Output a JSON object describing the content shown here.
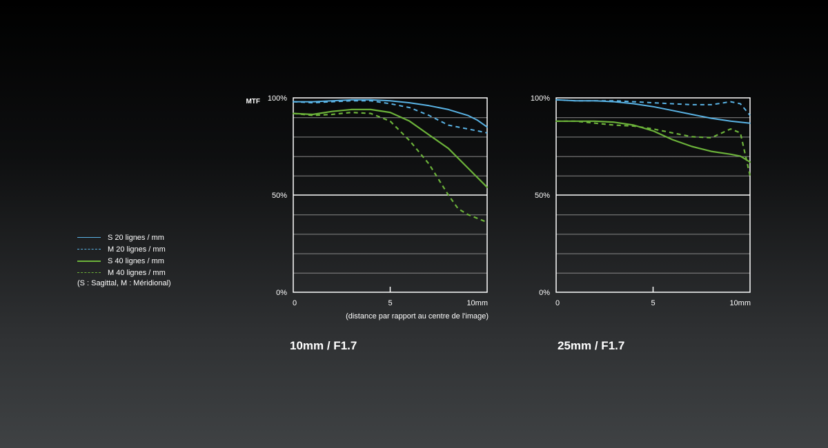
{
  "colors": {
    "sagittal_20": "#5ab4e6",
    "meridional_20": "#5ab4e6",
    "sagittal_40": "#6cb33a",
    "meridional_40": "#6cb33a",
    "axis": "#ffffff",
    "grid": "#8a8a8a"
  },
  "legend": {
    "items": [
      {
        "label": "S 20 lignes / mm",
        "color": "#5ab4e6",
        "style": "solid"
      },
      {
        "label": "M 20 lignes / mm",
        "color": "#5ab4e6",
        "style": "dashed"
      },
      {
        "label": "S 40 lignes / mm",
        "color": "#6cb33a",
        "style": "solid"
      },
      {
        "label": "M 40 lignes / mm",
        "color": "#6cb33a",
        "style": "dashed"
      }
    ],
    "note": "(S : Sagittal, M : Méridional)"
  },
  "chart_data": [
    {
      "type": "line",
      "title": "10mm / F1.7",
      "ylabel": "MTF",
      "xlabel": "(distance par rapport au centre de l'image)",
      "xlim": [
        0,
        10
      ],
      "ylim": [
        0,
        100
      ],
      "x_ticks": [
        "0",
        "5",
        "10mm"
      ],
      "y_ticks": [
        "0%",
        "50%",
        "100%"
      ],
      "grid": true,
      "series": [
        {
          "name": "S 20 lignes / mm",
          "style": "solid",
          "color": "#5ab4e6",
          "x": [
            0,
            1,
            2,
            3,
            4,
            5,
            6,
            7,
            8,
            9,
            9.5,
            10
          ],
          "y": [
            98,
            98,
            98.5,
            99,
            99,
            98.5,
            97.5,
            96,
            94,
            91,
            88.5,
            85
          ]
        },
        {
          "name": "M 20 lignes / mm",
          "style": "dashed",
          "color": "#5ab4e6",
          "x": [
            0,
            1,
            2,
            3,
            4,
            5,
            6,
            7,
            8,
            9,
            9.5,
            10
          ],
          "y": [
            98,
            97.5,
            98,
            98.5,
            98.5,
            97,
            95,
            91,
            86,
            84,
            83,
            82
          ]
        },
        {
          "name": "S 40 lignes / mm",
          "style": "solid",
          "color": "#6cb33a",
          "x": [
            0,
            1,
            2,
            3,
            3.5,
            4,
            5,
            6,
            7,
            8,
            9,
            10
          ],
          "y": [
            92,
            91.5,
            93,
            94,
            94,
            94,
            92.5,
            88,
            81,
            74,
            64,
            54
          ]
        },
        {
          "name": "M 40 lignes / mm",
          "style": "dashed",
          "color": "#6cb33a",
          "x": [
            0,
            1,
            2,
            3,
            4,
            5,
            6,
            7,
            7.5,
            8,
            8.5,
            9,
            10
          ],
          "y": [
            92,
            91,
            91.5,
            92.5,
            92,
            88,
            78,
            66,
            58,
            50,
            43,
            40,
            36
          ]
        }
      ]
    },
    {
      "type": "line",
      "title": "25mm / F1.7",
      "ylabel": "",
      "xlabel": "",
      "xlim": [
        0,
        10
      ],
      "ylim": [
        0,
        100
      ],
      "x_ticks": [
        "0",
        "5",
        "10mm"
      ],
      "y_ticks": [
        "0%",
        "50%",
        "100%"
      ],
      "grid": true,
      "series": [
        {
          "name": "S 20 lignes / mm",
          "style": "solid",
          "color": "#5ab4e6",
          "x": [
            0,
            1,
            2,
            3,
            4,
            5,
            6,
            7,
            8,
            9,
            10
          ],
          "y": [
            99,
            98.5,
            98.5,
            98,
            97,
            95.5,
            93.5,
            91.5,
            89.5,
            88,
            87
          ]
        },
        {
          "name": "M 20 lignes / mm",
          "style": "dashed",
          "color": "#5ab4e6",
          "x": [
            0,
            1,
            2,
            3,
            4,
            5,
            6,
            7,
            8,
            9,
            9.5,
            10
          ],
          "y": [
            99,
            98.5,
            98.5,
            98.5,
            98,
            97.5,
            97,
            96.5,
            96.5,
            98,
            97,
            91
          ]
        },
        {
          "name": "S 40 lignes / mm",
          "style": "solid",
          "color": "#6cb33a",
          "x": [
            0,
            1,
            2,
            3,
            4,
            5,
            6,
            7,
            8,
            9,
            9.5,
            10
          ],
          "y": [
            88,
            88,
            88,
            87.5,
            86,
            83,
            78.5,
            75,
            72.5,
            71,
            70,
            67
          ]
        },
        {
          "name": "M 40 lignes / mm",
          "style": "dashed",
          "color": "#6cb33a",
          "x": [
            0,
            1,
            2,
            3,
            4,
            5,
            6,
            7,
            8,
            9,
            9.5,
            10
          ],
          "y": [
            88,
            88,
            87,
            86,
            85.5,
            84,
            82,
            80,
            79.5,
            84,
            82,
            60
          ]
        }
      ]
    }
  ]
}
